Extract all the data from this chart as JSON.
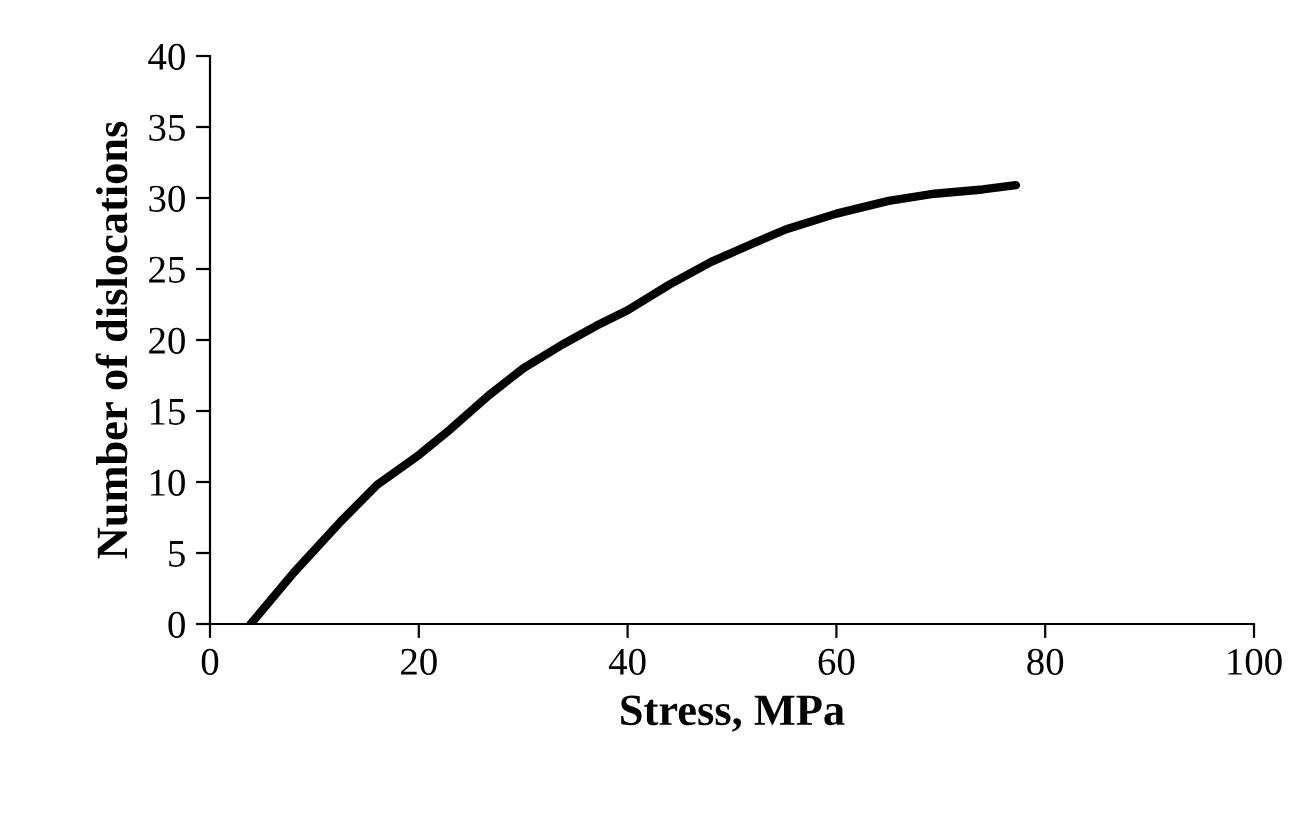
{
  "chart_data": {
    "type": "line",
    "xlabel": "Stress, MPa",
    "ylabel": "Number of dislocations",
    "x": [
      3.9,
      8,
      12.5,
      16,
      20,
      23,
      26.7,
      30,
      33.8,
      37,
      40,
      44,
      48,
      52,
      55.2,
      60,
      65,
      69.4,
      74,
      77.2
    ],
    "series": [
      {
        "color": "#000000",
        "values": [
          0,
          3.6,
          7.2,
          9.8,
          11.9,
          13.7,
          16.1,
          18,
          19.7,
          21,
          22.1,
          23.9,
          25.5,
          26.8,
          27.8,
          28.9,
          29.8,
          30.3,
          30.6,
          30.9
        ]
      }
    ],
    "xlim": [
      0,
      100
    ],
    "xticks": [
      0,
      20,
      40,
      60,
      80,
      100
    ],
    "ylim": [
      0,
      40
    ],
    "yticks": [
      0,
      5,
      10,
      15,
      20,
      25,
      30,
      35,
      40
    ],
    "grid": false,
    "legend": false,
    "marker": "none",
    "line_style": "solid"
  }
}
